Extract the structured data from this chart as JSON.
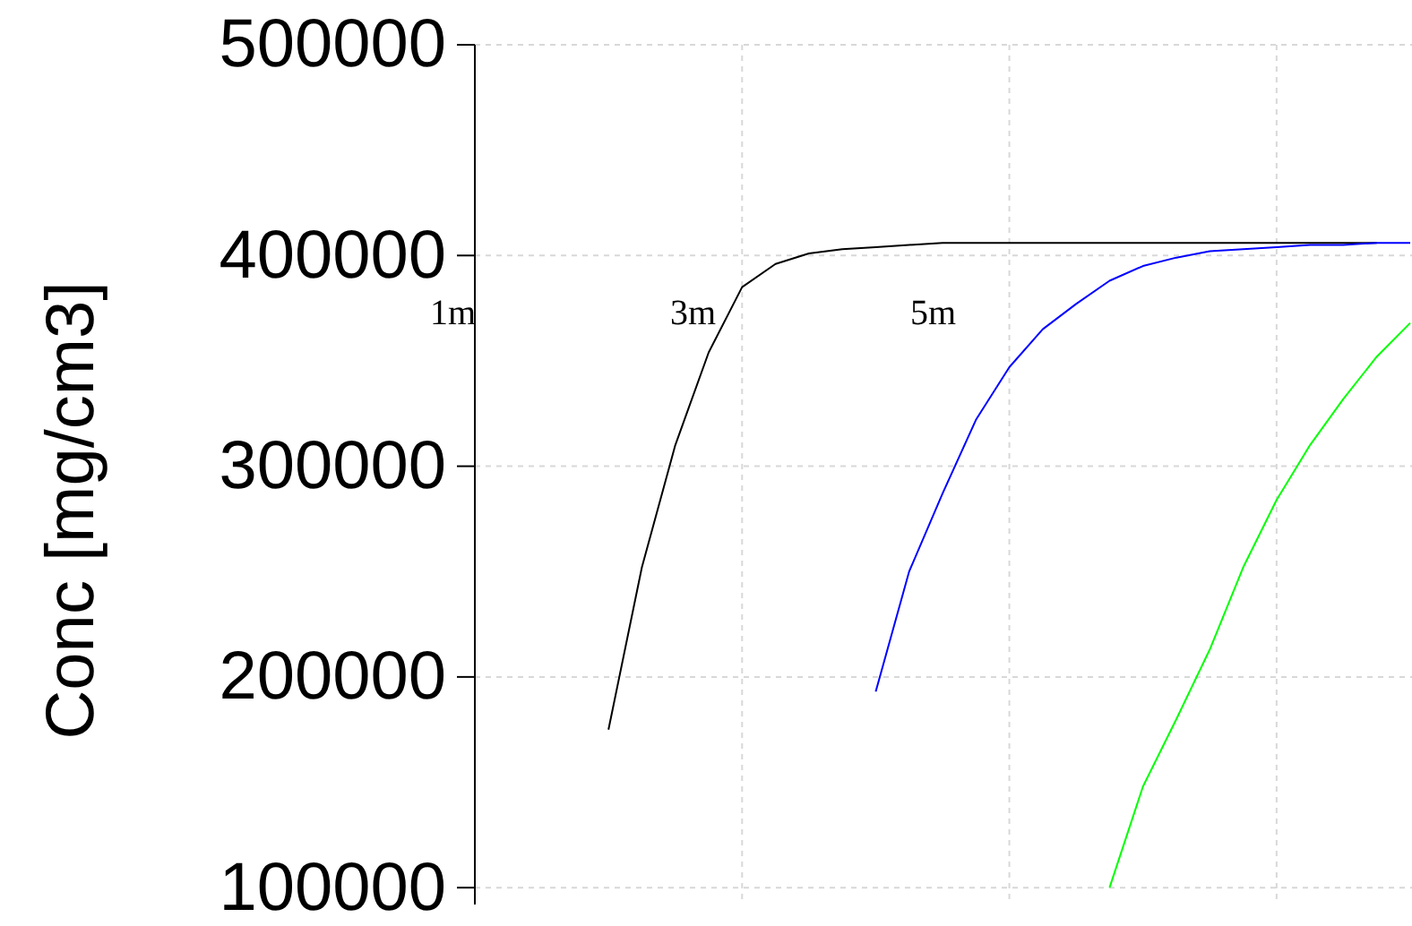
{
  "chart_data": {
    "type": "line",
    "ylabel": "Conc [mg/cm3]",
    "ylim": [
      92000,
      500000
    ],
    "categories": [
      null,
      null,
      null,
      null,
      null,
      null,
      null,
      null,
      null,
      null,
      null,
      null,
      null,
      null,
      null,
      null,
      null,
      null,
      null,
      null,
      null,
      null,
      null,
      null,
      null,
      null,
      null,
      null,
      null
    ],
    "yticks": [
      100000,
      200000,
      300000,
      400000,
      500000
    ],
    "grid": true,
    "marker": "none",
    "line_style": "solid",
    "annotations": [
      "1m",
      "3m",
      "5m"
    ],
    "series": [
      {
        "color": "#000000",
        "values": [
          null,
          null,
          null,
          null,
          175000,
          252000,
          310000,
          354000,
          385000,
          396000,
          401000,
          403000,
          404000,
          405000,
          406000,
          406000,
          406000,
          406000,
          406000,
          406000,
          406000,
          406000,
          406000,
          406000,
          406000,
          406000,
          406000,
          406000,
          null
        ]
      },
      {
        "color": "#0000ff",
        "values": [
          null,
          null,
          null,
          null,
          null,
          null,
          null,
          null,
          null,
          null,
          null,
          null,
          193000,
          250000,
          287000,
          322000,
          347000,
          365000,
          377000,
          388000,
          395000,
          399000,
          402000,
          403000,
          404000,
          405000,
          405000,
          406000,
          406000
        ]
      },
      {
        "color": "#00ff00",
        "values": [
          null,
          null,
          null,
          null,
          null,
          null,
          null,
          null,
          null,
          null,
          null,
          null,
          null,
          null,
          null,
          null,
          null,
          null,
          null,
          100000,
          148000,
          180000,
          213000,
          252000,
          284000,
          310000,
          332000,
          352000,
          368000
        ]
      }
    ]
  }
}
